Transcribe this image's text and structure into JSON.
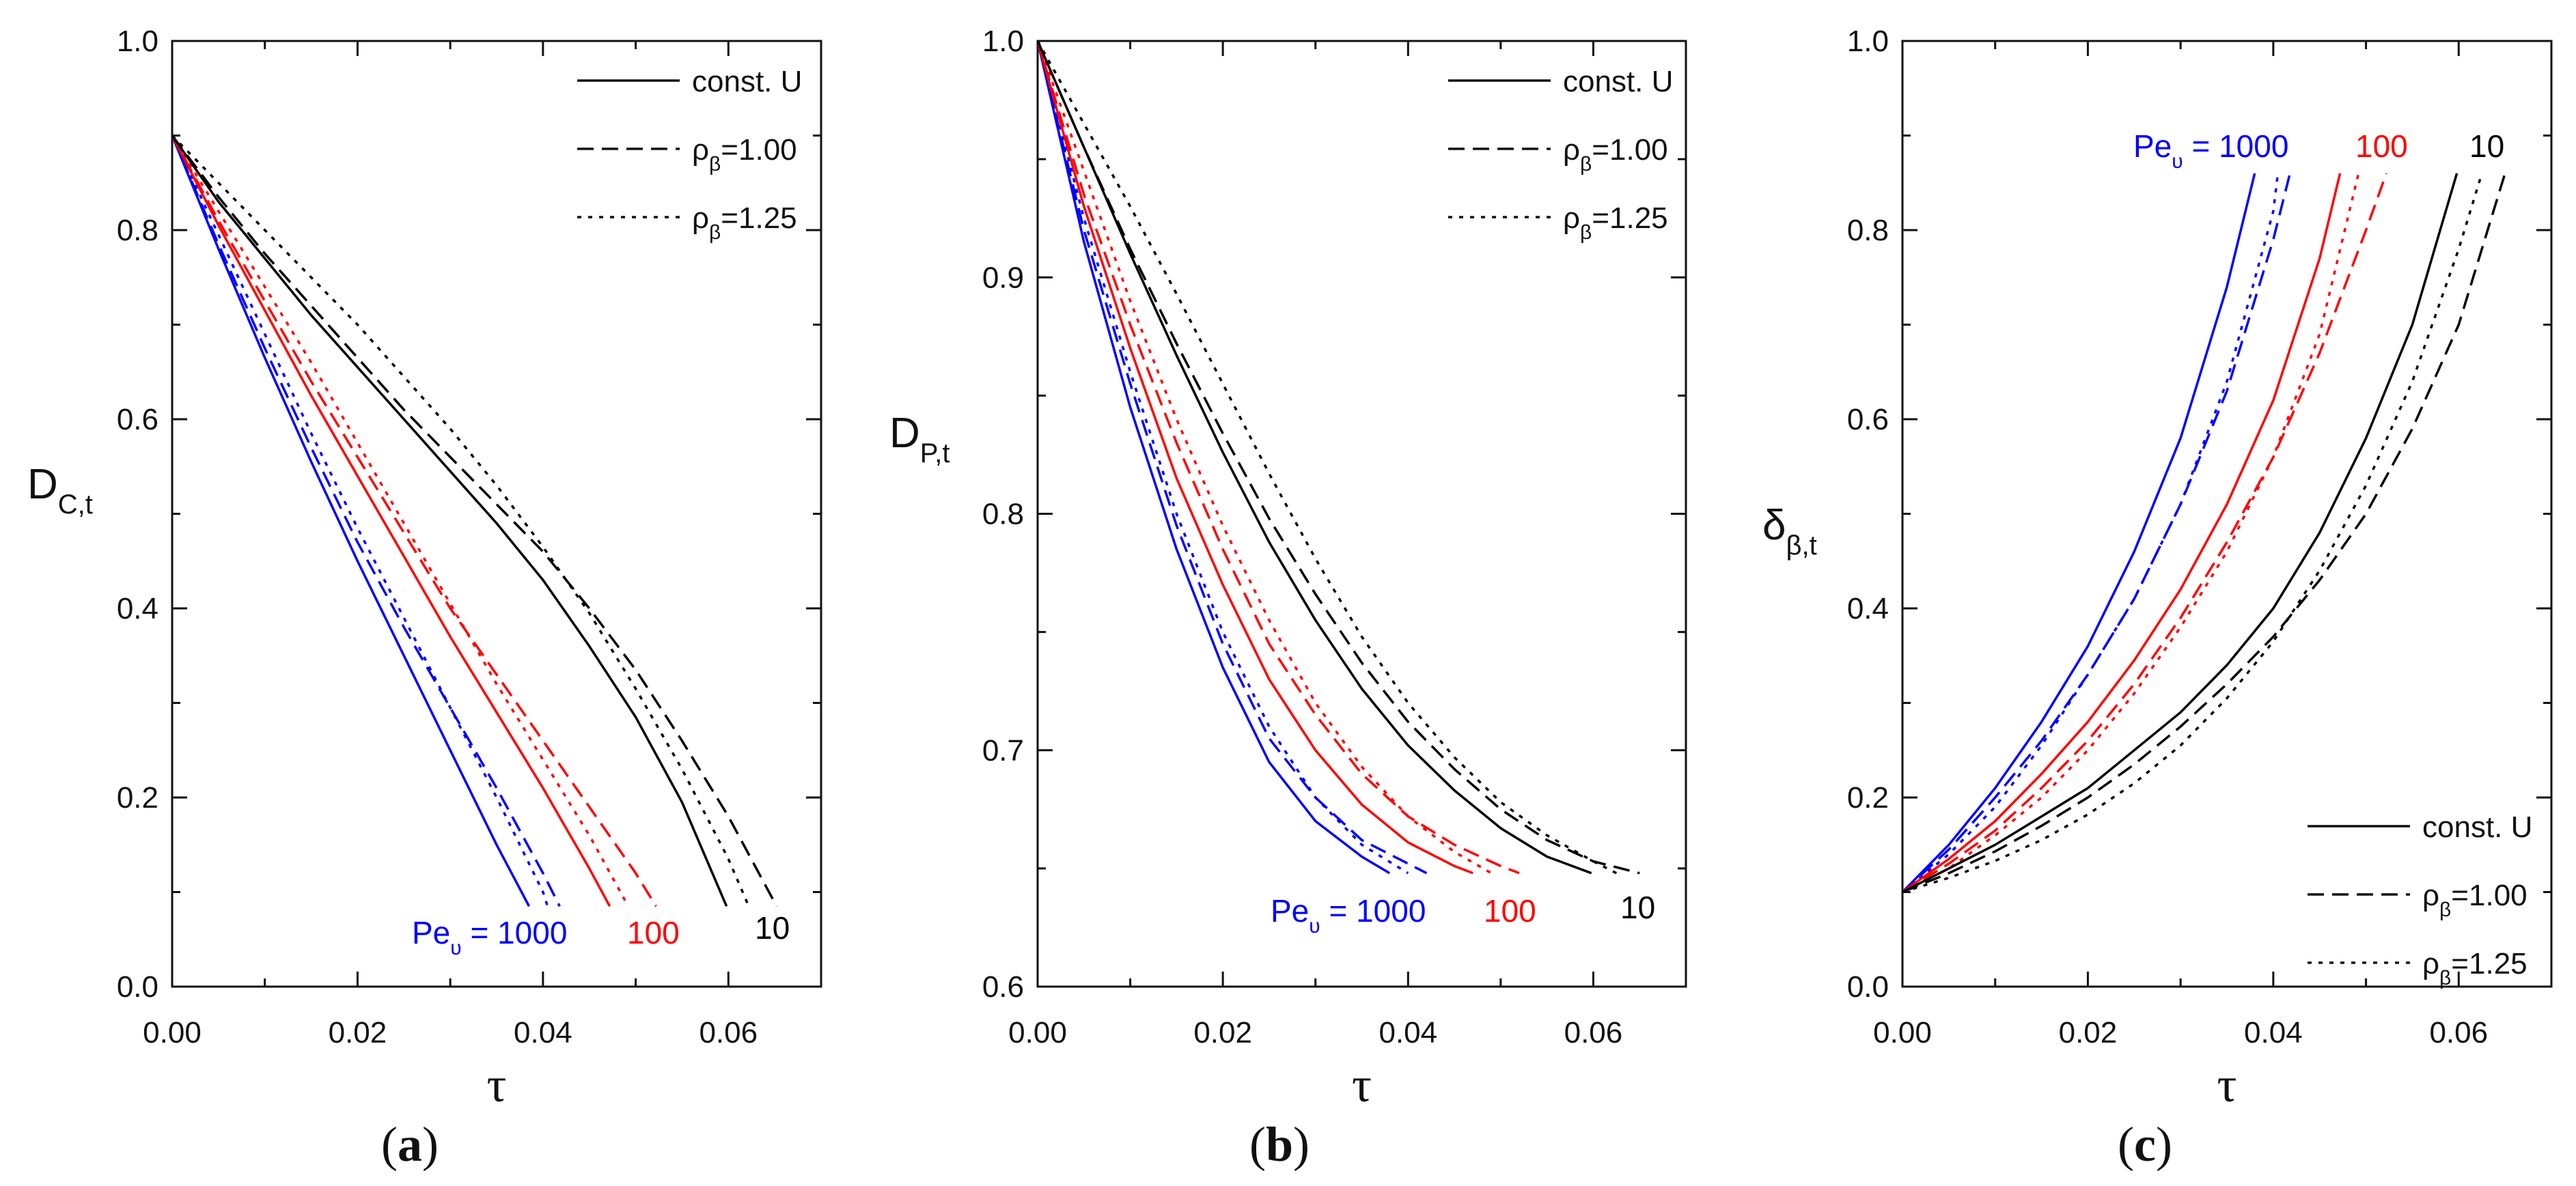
{
  "chart_data": [
    {
      "panel_label": "a",
      "type": "line",
      "xlabel": "τ",
      "ylabel_main": "D",
      "ylabel_sub": "C,t",
      "xlim": [
        0.0,
        0.07
      ],
      "ylim": [
        0.0,
        1.0
      ],
      "xticks": [
        "0.00",
        "0.02",
        "0.04",
        "0.06"
      ],
      "yticks": [
        "0.0",
        "0.2",
        "0.4",
        "0.6",
        "0.8",
        "1.0"
      ],
      "legend_position": "top-right",
      "legend": [
        {
          "label": "const. U",
          "sub": "",
          "style": "solid"
        },
        {
          "label": "ρ",
          "sub": "β",
          "suffix": "=1.00",
          "style": "dashed"
        },
        {
          "label": "ρ",
          "sub": "β",
          "suffix": "=1.25",
          "style": "dotted"
        }
      ],
      "annotations": [
        {
          "text": "Pe",
          "sub": "υ",
          "suffix": " = 1000",
          "color": "#0000ff"
        },
        {
          "text": "100",
          "sub": "",
          "suffix": "",
          "color": "#ff0000"
        },
        {
          "text": "10",
          "sub": "",
          "suffix": "",
          "color": "#000000"
        }
      ],
      "series": [
        {
          "name": "Pe=1000 const. U",
          "color": "#0000ff",
          "style": "solid",
          "x": [
            0,
            0.005,
            0.01,
            0.015,
            0.02,
            0.025,
            0.03,
            0.035,
            0.0385
          ],
          "y": [
            0.9,
            0.78,
            0.665,
            0.555,
            0.45,
            0.35,
            0.25,
            0.15,
            0.085
          ]
        },
        {
          "name": "Pe=1000 ρβ=1.00",
          "color": "#0000ff",
          "style": "dashed",
          "x": [
            0,
            0.005,
            0.01,
            0.015,
            0.02,
            0.025,
            0.03,
            0.035,
            0.04,
            0.0418
          ],
          "y": [
            0.9,
            0.785,
            0.675,
            0.57,
            0.47,
            0.38,
            0.295,
            0.21,
            0.12,
            0.085
          ]
        },
        {
          "name": "Pe=1000 ρβ=1.25",
          "color": "#0000ff",
          "style": "dotted",
          "x": [
            0,
            0.005,
            0.01,
            0.015,
            0.02,
            0.025,
            0.03,
            0.035,
            0.04,
            0.0405
          ],
          "y": [
            0.9,
            0.795,
            0.69,
            0.585,
            0.485,
            0.39,
            0.295,
            0.2,
            0.1,
            0.085
          ]
        },
        {
          "name": "Pe=100 const. U",
          "color": "#ff0000",
          "style": "solid",
          "x": [
            0,
            0.005,
            0.01,
            0.015,
            0.02,
            0.025,
            0.03,
            0.035,
            0.04,
            0.045,
            0.0472
          ],
          "y": [
            0.9,
            0.805,
            0.715,
            0.625,
            0.54,
            0.455,
            0.37,
            0.29,
            0.21,
            0.125,
            0.085
          ]
        },
        {
          "name": "Pe=100 ρβ=1.00",
          "color": "#ff0000",
          "style": "dashed",
          "x": [
            0,
            0.005,
            0.01,
            0.015,
            0.02,
            0.025,
            0.03,
            0.035,
            0.04,
            0.045,
            0.05,
            0.0522
          ],
          "y": [
            0.9,
            0.81,
            0.725,
            0.64,
            0.56,
            0.48,
            0.4,
            0.33,
            0.26,
            0.19,
            0.12,
            0.085
          ]
        },
        {
          "name": "Pe=100 ρβ=1.25",
          "color": "#ff0000",
          "style": "dotted",
          "x": [
            0,
            0.005,
            0.01,
            0.015,
            0.02,
            0.025,
            0.03,
            0.035,
            0.04,
            0.045,
            0.0492
          ],
          "y": [
            0.9,
            0.82,
            0.74,
            0.66,
            0.575,
            0.49,
            0.405,
            0.32,
            0.24,
            0.16,
            0.085
          ]
        },
        {
          "name": "Pe=10 const. U",
          "color": "#000000",
          "style": "solid",
          "x": [
            0,
            0.005,
            0.01,
            0.015,
            0.02,
            0.025,
            0.03,
            0.035,
            0.04,
            0.045,
            0.05,
            0.055,
            0.0598
          ],
          "y": [
            0.9,
            0.83,
            0.77,
            0.71,
            0.655,
            0.6,
            0.545,
            0.49,
            0.43,
            0.36,
            0.285,
            0.195,
            0.085
          ]
        },
        {
          "name": "Pe=10 ρβ=1.00",
          "color": "#000000",
          "style": "dashed",
          "x": [
            0,
            0.005,
            0.01,
            0.015,
            0.02,
            0.025,
            0.03,
            0.035,
            0.04,
            0.045,
            0.05,
            0.055,
            0.06,
            0.0652
          ],
          "y": [
            0.9,
            0.835,
            0.775,
            0.72,
            0.665,
            0.61,
            0.56,
            0.51,
            0.46,
            0.4,
            0.335,
            0.26,
            0.18,
            0.085
          ]
        },
        {
          "name": "Pe=10 ρβ=1.25",
          "color": "#000000",
          "style": "dotted",
          "x": [
            0,
            0.005,
            0.01,
            0.015,
            0.02,
            0.025,
            0.03,
            0.035,
            0.04,
            0.045,
            0.05,
            0.055,
            0.06,
            0.0622
          ],
          "y": [
            0.9,
            0.85,
            0.8,
            0.75,
            0.7,
            0.645,
            0.59,
            0.53,
            0.465,
            0.395,
            0.315,
            0.23,
            0.135,
            0.085
          ]
        }
      ]
    },
    {
      "panel_label": "b",
      "type": "line",
      "xlabel": "τ",
      "ylabel_main": "D",
      "ylabel_sub": "P,t",
      "xlim": [
        0.0,
        0.07
      ],
      "ylim": [
        0.6,
        1.0
      ],
      "xticks": [
        "0.00",
        "0.02",
        "0.04",
        "0.06"
      ],
      "yticks": [
        "0.6",
        "0.7",
        "0.8",
        "0.9",
        "1.0"
      ],
      "legend_position": "top-right",
      "legend": [
        {
          "label": "const. U",
          "sub": "",
          "style": "solid"
        },
        {
          "label": "ρ",
          "sub": "β",
          "suffix": "=1.00",
          "style": "dashed"
        },
        {
          "label": "ρ",
          "sub": "β",
          "suffix": "=1.25",
          "style": "dotted"
        }
      ],
      "annotations": [
        {
          "text": "Pe",
          "sub": "υ",
          "suffix": " = 1000",
          "color": "#0000ff"
        },
        {
          "text": "100",
          "sub": "",
          "suffix": "",
          "color": "#ff0000"
        },
        {
          "text": "10",
          "sub": "",
          "suffix": "",
          "color": "#000000"
        }
      ],
      "series": [
        {
          "name": "Pe=1000 const. U",
          "color": "#0000ff",
          "style": "solid",
          "x": [
            0,
            0.005,
            0.01,
            0.015,
            0.02,
            0.025,
            0.03,
            0.035,
            0.038
          ],
          "y": [
            1.0,
            0.915,
            0.845,
            0.785,
            0.735,
            0.695,
            0.67,
            0.655,
            0.648
          ]
        },
        {
          "name": "Pe=1000 ρβ=1.00",
          "color": "#0000ff",
          "style": "dashed",
          "x": [
            0,
            0.005,
            0.01,
            0.015,
            0.02,
            0.025,
            0.03,
            0.035,
            0.04,
            0.042
          ],
          "y": [
            1.0,
            0.92,
            0.855,
            0.795,
            0.745,
            0.705,
            0.68,
            0.662,
            0.652,
            0.648
          ]
        },
        {
          "name": "Pe=1000 ρβ=1.25",
          "color": "#0000ff",
          "style": "dotted",
          "x": [
            0,
            0.005,
            0.01,
            0.015,
            0.02,
            0.025,
            0.03,
            0.035,
            0.04
          ],
          "y": [
            1.0,
            0.925,
            0.86,
            0.8,
            0.75,
            0.71,
            0.68,
            0.66,
            0.648
          ]
        },
        {
          "name": "Pe=100 const. U",
          "color": "#ff0000",
          "style": "solid",
          "x": [
            0,
            0.005,
            0.01,
            0.015,
            0.02,
            0.025,
            0.03,
            0.035,
            0.04,
            0.045,
            0.047
          ],
          "y": [
            1.0,
            0.93,
            0.87,
            0.815,
            0.77,
            0.73,
            0.7,
            0.677,
            0.661,
            0.651,
            0.648
          ]
        },
        {
          "name": "Pe=100 ρβ=1.00",
          "color": "#ff0000",
          "style": "dashed",
          "x": [
            0,
            0.005,
            0.01,
            0.015,
            0.02,
            0.025,
            0.03,
            0.035,
            0.04,
            0.045,
            0.05,
            0.052
          ],
          "y": [
            1.0,
            0.935,
            0.88,
            0.83,
            0.785,
            0.745,
            0.715,
            0.69,
            0.672,
            0.66,
            0.651,
            0.648
          ]
        },
        {
          "name": "Pe=100 ρβ=1.25",
          "color": "#ff0000",
          "style": "dotted",
          "x": [
            0,
            0.005,
            0.01,
            0.015,
            0.02,
            0.025,
            0.03,
            0.035,
            0.04,
            0.045,
            0.049
          ],
          "y": [
            1.0,
            0.945,
            0.89,
            0.84,
            0.795,
            0.755,
            0.72,
            0.693,
            0.672,
            0.657,
            0.648
          ]
        },
        {
          "name": "Pe=10 const. U",
          "color": "#000000",
          "style": "solid",
          "x": [
            0,
            0.005,
            0.01,
            0.015,
            0.02,
            0.025,
            0.03,
            0.035,
            0.04,
            0.045,
            0.05,
            0.055,
            0.0598
          ],
          "y": [
            1.0,
            0.955,
            0.91,
            0.867,
            0.826,
            0.788,
            0.755,
            0.726,
            0.702,
            0.683,
            0.667,
            0.655,
            0.648
          ]
        },
        {
          "name": "Pe=10 ρβ=1.00",
          "color": "#000000",
          "style": "dashed",
          "x": [
            0,
            0.005,
            0.01,
            0.015,
            0.02,
            0.025,
            0.03,
            0.035,
            0.04,
            0.045,
            0.05,
            0.055,
            0.06,
            0.065
          ],
          "y": [
            1.0,
            0.955,
            0.912,
            0.872,
            0.834,
            0.798,
            0.766,
            0.737,
            0.712,
            0.692,
            0.675,
            0.662,
            0.653,
            0.648
          ]
        },
        {
          "name": "Pe=10 ρβ=1.25",
          "color": "#000000",
          "style": "dotted",
          "x": [
            0,
            0.005,
            0.01,
            0.015,
            0.02,
            0.025,
            0.03,
            0.035,
            0.04,
            0.045,
            0.05,
            0.055,
            0.06,
            0.0625
          ],
          "y": [
            1.0,
            0.965,
            0.93,
            0.893,
            0.855,
            0.817,
            0.781,
            0.748,
            0.72,
            0.697,
            0.678,
            0.664,
            0.653,
            0.648
          ]
        }
      ]
    },
    {
      "panel_label": "c",
      "type": "line",
      "xlabel": "τ",
      "ylabel_main": "δ",
      "ylabel_sub": "β,t",
      "xlim": [
        0.0,
        0.07
      ],
      "ylim": [
        0.0,
        1.0
      ],
      "xticks": [
        "0.00",
        "0.02",
        "0.04",
        "0.06"
      ],
      "yticks": [
        "0.0",
        "0.2",
        "0.4",
        "0.6",
        "0.8",
        "1.0"
      ],
      "legend_position": "bottom-right",
      "legend": [
        {
          "label": "const. U",
          "sub": "",
          "style": "solid"
        },
        {
          "label": "ρ",
          "sub": "β",
          "suffix": "=1.00",
          "style": "dashed"
        },
        {
          "label": "ρ",
          "sub": "β",
          "suffix": "=1.25",
          "style": "dotted"
        }
      ],
      "annotations": [
        {
          "text": "Pe",
          "sub": "υ",
          "suffix": " = 1000",
          "color": "#0000ff"
        },
        {
          "text": "100",
          "sub": "",
          "suffix": "",
          "color": "#ff0000"
        },
        {
          "text": "10",
          "sub": "",
          "suffix": "",
          "color": "#000000"
        }
      ],
      "series": [
        {
          "name": "Pe=1000 const. U",
          "color": "#0000ff",
          "style": "solid",
          "x": [
            0,
            0.005,
            0.01,
            0.015,
            0.02,
            0.025,
            0.03,
            0.035,
            0.038
          ],
          "y": [
            0.1,
            0.15,
            0.21,
            0.28,
            0.36,
            0.46,
            0.58,
            0.74,
            0.86
          ]
        },
        {
          "name": "Pe=1000 ρβ=1.00",
          "color": "#0000ff",
          "style": "dashed",
          "x": [
            0,
            0.005,
            0.01,
            0.015,
            0.02,
            0.025,
            0.03,
            0.035,
            0.04,
            0.0418
          ],
          "y": [
            0.1,
            0.145,
            0.2,
            0.26,
            0.33,
            0.41,
            0.51,
            0.63,
            0.79,
            0.86
          ]
        },
        {
          "name": "Pe=1000 ρβ=1.25",
          "color": "#0000ff",
          "style": "dotted",
          "x": [
            0,
            0.005,
            0.01,
            0.015,
            0.02,
            0.025,
            0.03,
            0.035,
            0.04,
            0.0405
          ],
          "y": [
            0.1,
            0.14,
            0.19,
            0.255,
            0.33,
            0.41,
            0.51,
            0.64,
            0.82,
            0.86
          ]
        },
        {
          "name": "Pe=100 const. U",
          "color": "#ff0000",
          "style": "solid",
          "x": [
            0,
            0.005,
            0.01,
            0.015,
            0.02,
            0.025,
            0.03,
            0.035,
            0.04,
            0.045,
            0.0472
          ],
          "y": [
            0.1,
            0.135,
            0.175,
            0.225,
            0.28,
            0.345,
            0.42,
            0.51,
            0.62,
            0.77,
            0.86
          ]
        },
        {
          "name": "Pe=100 ρβ=1.00",
          "color": "#ff0000",
          "style": "dashed",
          "x": [
            0,
            0.005,
            0.01,
            0.015,
            0.02,
            0.025,
            0.03,
            0.035,
            0.04,
            0.045,
            0.05,
            0.0522
          ],
          "y": [
            0.1,
            0.13,
            0.165,
            0.21,
            0.26,
            0.32,
            0.39,
            0.47,
            0.56,
            0.67,
            0.8,
            0.86
          ]
        },
        {
          "name": "Pe=100 ρβ=1.25",
          "color": "#ff0000",
          "style": "dotted",
          "x": [
            0,
            0.005,
            0.01,
            0.015,
            0.02,
            0.025,
            0.03,
            0.035,
            0.04,
            0.045,
            0.0492
          ],
          "y": [
            0.1,
            0.125,
            0.16,
            0.2,
            0.25,
            0.31,
            0.38,
            0.46,
            0.56,
            0.69,
            0.86
          ]
        },
        {
          "name": "Pe=10 const. U",
          "color": "#000000",
          "style": "solid",
          "x": [
            0,
            0.005,
            0.01,
            0.015,
            0.02,
            0.025,
            0.03,
            0.035,
            0.04,
            0.045,
            0.05,
            0.055,
            0.0598
          ],
          "y": [
            0.1,
            0.125,
            0.15,
            0.18,
            0.21,
            0.25,
            0.29,
            0.34,
            0.4,
            0.48,
            0.58,
            0.7,
            0.86
          ]
        },
        {
          "name": "Pe=10 ρβ=1.00",
          "color": "#000000",
          "style": "dashed",
          "x": [
            0,
            0.005,
            0.01,
            0.015,
            0.02,
            0.025,
            0.03,
            0.035,
            0.04,
            0.045,
            0.05,
            0.055,
            0.06,
            0.065
          ],
          "y": [
            0.1,
            0.12,
            0.143,
            0.17,
            0.2,
            0.235,
            0.275,
            0.32,
            0.37,
            0.43,
            0.5,
            0.59,
            0.7,
            0.86
          ]
        },
        {
          "name": "Pe=10 ρβ=1.25",
          "color": "#000000",
          "style": "dotted",
          "x": [
            0,
            0.005,
            0.01,
            0.015,
            0.02,
            0.025,
            0.03,
            0.035,
            0.04,
            0.045,
            0.05,
            0.055,
            0.06,
            0.0625
          ],
          "y": [
            0.1,
            0.115,
            0.133,
            0.155,
            0.182,
            0.215,
            0.255,
            0.305,
            0.365,
            0.44,
            0.53,
            0.64,
            0.78,
            0.86
          ]
        }
      ]
    }
  ]
}
